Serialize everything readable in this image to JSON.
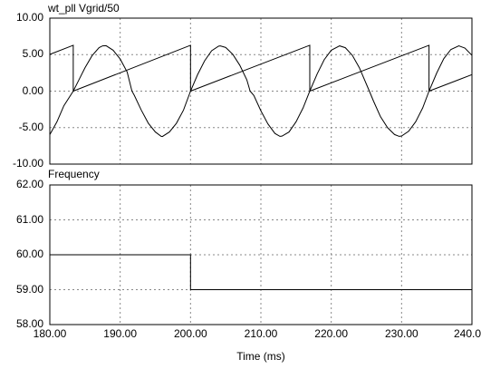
{
  "chart_data": [
    {
      "type": "line",
      "title": "wt_pll  Vgrid/50",
      "series_names_printed": [
        "wt_pll",
        "Vgrid/50"
      ],
      "xlim": [
        180,
        240
      ],
      "ylim": [
        -10,
        10
      ],
      "yticks": [
        "10.00",
        "5.00",
        "0.00",
        "-5.00",
        "-10.00"
      ],
      "xticks": [
        "180.00",
        "190.00",
        "200.00",
        "210.00",
        "220.00",
        "230.00",
        "240.00"
      ],
      "xlabel": "Time  (ms)",
      "grid": true,
      "series": [
        {
          "name": "wt_pll",
          "x": [
            180.0,
            183.33,
            183.33,
            200.0,
            200.0,
            216.95,
            216.95,
            233.9,
            233.9,
            240.0
          ],
          "y": [
            5.03,
            6.28,
            0.0,
            6.28,
            0.0,
            6.28,
            0.0,
            6.28,
            0.0,
            2.26
          ]
        },
        {
          "name": "Vgrid/50",
          "x": [
            180.0,
            181.0,
            182.0,
            183.33,
            184.0,
            185.0,
            186.0,
            187.0,
            187.5,
            188.0,
            189.0,
            190.0,
            191.0,
            191.67,
            192.0,
            193.0,
            194.0,
            195.0,
            195.83,
            196.0,
            197.0,
            198.0,
            199.0,
            200.0,
            201.0,
            202.0,
            203.0,
            204.0,
            204.24,
            205.0,
            206.0,
            207.0,
            208.0,
            208.47,
            209.0,
            210.0,
            211.0,
            212.0,
            212.71,
            213.0,
            214.0,
            215.0,
            216.0,
            216.95,
            218.0,
            219.0,
            220.0,
            221.19,
            222.0,
            223.0,
            224.0,
            225.42,
            226.0,
            227.0,
            228.0,
            229.0,
            229.66,
            230.0,
            231.0,
            232.0,
            233.0,
            233.9,
            235.0,
            236.0,
            237.0,
            238.14,
            239.0,
            240.0
          ],
          "y": [
            -5.96,
            -4.23,
            -2.0,
            0.0,
            1.28,
            3.2,
            4.85,
            5.96,
            6.2,
            6.22,
            5.6,
            4.4,
            2.6,
            0.0,
            -0.56,
            -2.6,
            -4.4,
            -5.6,
            -6.2,
            -6.22,
            -5.6,
            -4.4,
            -2.6,
            0.0,
            2.25,
            4.15,
            5.53,
            6.17,
            6.2,
            5.98,
            5.05,
            3.55,
            1.55,
            0.0,
            -0.6,
            -2.7,
            -4.5,
            -5.8,
            -6.2,
            -6.17,
            -5.6,
            -4.2,
            -2.3,
            0.0,
            2.35,
            4.3,
            5.6,
            6.2,
            5.95,
            4.9,
            3.2,
            0.0,
            -1.35,
            -3.5,
            -5.0,
            -5.95,
            -6.2,
            -6.15,
            -5.5,
            -4.2,
            -2.3,
            0.0,
            2.5,
            4.45,
            5.7,
            6.2,
            5.9,
            4.9
          ]
        }
      ]
    },
    {
      "type": "line",
      "title": "Frequency",
      "xlim": [
        180,
        240
      ],
      "ylim": [
        58,
        62
      ],
      "yticks": [
        "62.00",
        "61.00",
        "60.00",
        "59.00",
        "58.00"
      ],
      "xticks": [
        "180.00",
        "190.00",
        "200.00",
        "210.00",
        "220.00",
        "230.00",
        "240.00"
      ],
      "xlabel": "Time  (ms)",
      "grid": true,
      "series": [
        {
          "name": "Frequency",
          "x": [
            180.0,
            200.0,
            200.0,
            240.0
          ],
          "y": [
            60.0,
            60.0,
            59.0,
            59.0
          ]
        }
      ]
    }
  ]
}
